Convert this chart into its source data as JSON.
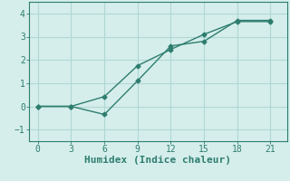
{
  "xlabel": "Humidex (Indice chaleur)",
  "ylabel": "",
  "background_color": "#d5eeec",
  "line_color": "#2e7d6e",
  "grid_color": "#b0d8d5",
  "line1_x": [
    0,
    3,
    6,
    9,
    12,
    15,
    18,
    21
  ],
  "line1_y": [
    0.0,
    0.0,
    -0.35,
    1.1,
    2.6,
    2.8,
    3.7,
    3.7
  ],
  "line2_x": [
    0,
    3,
    6,
    9,
    12,
    15,
    18,
    21
  ],
  "line2_y": [
    0.0,
    0.0,
    0.42,
    1.75,
    2.45,
    3.1,
    3.65,
    3.65
  ],
  "xlim": [
    -0.8,
    22.5
  ],
  "ylim": [
    -1.5,
    4.5
  ],
  "xticks": [
    0,
    3,
    6,
    9,
    12,
    15,
    18,
    21
  ],
  "yticks": [
    -1,
    0,
    1,
    2,
    3,
    4
  ],
  "marker": "D",
  "markersize": 2.5,
  "linewidth": 1.0,
  "font_color": "#2e7d6e",
  "tick_fontsize": 7.0,
  "xlabel_fontsize": 8.0
}
